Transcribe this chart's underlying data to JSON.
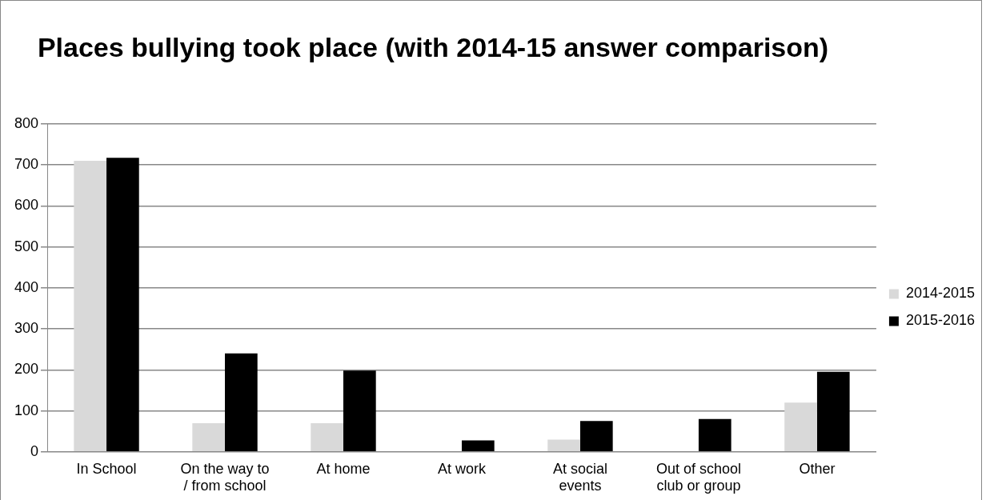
{
  "chart_data": {
    "type": "bar",
    "title": "Places bullying took place (with 2014-15 answer comparison)",
    "categories": [
      "In School",
      "On the way to / from school",
      "At home",
      "At work",
      "At social events",
      "Out of school club or group",
      "Other"
    ],
    "series": [
      {
        "name": "2014-2015",
        "color": "#d9d9d9",
        "values": [
          710,
          70,
          70,
          0,
          30,
          0,
          120
        ]
      },
      {
        "name": "2015-2016",
        "color": "#000000",
        "values": [
          717,
          240,
          198,
          28,
          75,
          80,
          195
        ]
      }
    ],
    "ylim": [
      0,
      800
    ],
    "yticks": [
      0,
      100,
      200,
      300,
      400,
      500,
      600,
      700,
      800
    ],
    "grid": "y",
    "legend": "right"
  }
}
